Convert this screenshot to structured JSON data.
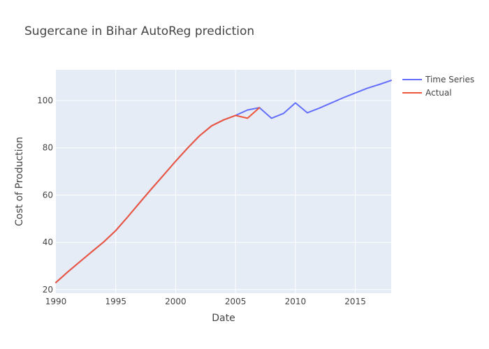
{
  "chart_data": {
    "type": "line",
    "title": "Sugercane in Bihar AutoReg prediction",
    "xlabel": "Date",
    "ylabel": "Cost of Production",
    "xlim": [
      1990,
      2018
    ],
    "ylim": [
      18.5,
      113
    ],
    "x_ticks": [
      1990,
      1995,
      2000,
      2005,
      2010,
      2015
    ],
    "y_ticks": [
      20,
      40,
      60,
      80,
      100
    ],
    "grid": true,
    "legend_position": "top-right, outside plot",
    "colors": {
      "plot_background": "#E5ECF6",
      "grid": "#FFFFFF"
    },
    "series": [
      {
        "name": "Time Series",
        "color": "#636EFA",
        "x": [
          1990,
          1991,
          1992,
          1993,
          1994,
          1995,
          1996,
          1997,
          1998,
          1999,
          2000,
          2001,
          2002,
          2003,
          2004,
          2005,
          2006,
          2007,
          2008,
          2009,
          2010,
          2011,
          2012,
          2013,
          2014,
          2015,
          2016,
          2017,
          2018
        ],
        "values": [
          23.0,
          27.5,
          31.8,
          36.0,
          40.2,
          45.0,
          50.8,
          56.8,
          62.7,
          68.5,
          74.3,
          79.9,
          85.1,
          89.3,
          91.8,
          93.7,
          96.0,
          97.0,
          92.5,
          94.5,
          99.0,
          94.8,
          96.8,
          99.0,
          101.2,
          103.2,
          105.2,
          106.8,
          108.5
        ]
      },
      {
        "name": "Actual",
        "color": "#EF553B",
        "x": [
          1990,
          1991,
          1992,
          1993,
          1994,
          1995,
          1996,
          1997,
          1998,
          1999,
          2000,
          2001,
          2002,
          2003,
          2004,
          2005,
          2006,
          2007
        ],
        "values": [
          23.0,
          27.5,
          31.8,
          36.0,
          40.2,
          45.0,
          50.8,
          56.8,
          62.7,
          68.5,
          74.3,
          79.9,
          85.1,
          89.3,
          91.8,
          93.7,
          92.5,
          97.0
        ]
      }
    ]
  }
}
